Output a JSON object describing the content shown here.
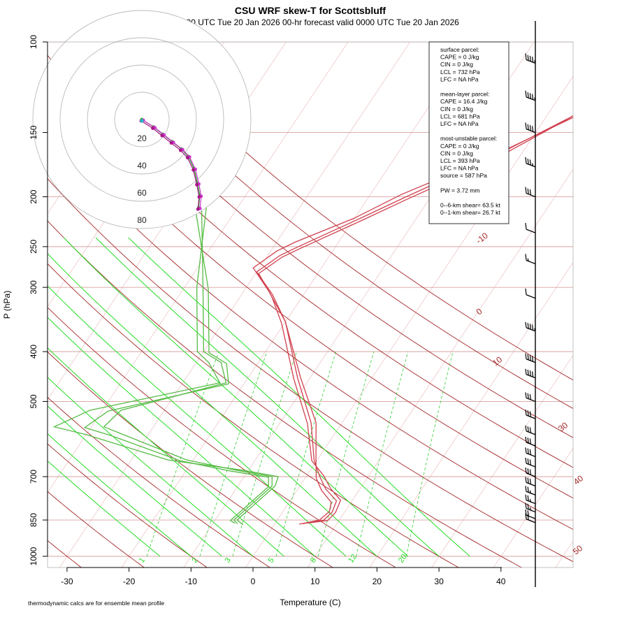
{
  "header": {
    "title": "CSU WRF skew-T for Scottsbluff",
    "subtitle": "init: 0000 UTC Tue 20 Jan 2026     00-hr forecast valid 0000 UTC Tue 20 Jan 2026"
  },
  "footer_note": "thermodynamic calcs are for ensemble mean profile",
  "colors": {
    "temperature": "#d0404e",
    "dewpoint": "#55bb44",
    "dry_adiabat": "#a32626",
    "moist_adiabat": "#22dd22",
    "mixing_ratio": "#33cc33",
    "isobar": "#d9a0a0",
    "isotherm": "#e8b6b6",
    "hodograph_ring": "#bbbbbb",
    "hodo_magenta": "#cc33cc",
    "hodo_cyan": "#22bbcc",
    "wind_barb": "#000000"
  },
  "stats": {
    "lines": [
      "surface parcel:",
      "CAPE = 0 J/kg",
      "CIN = 0 J/kg",
      "LCL = 732 hPa",
      "LFC = NA hPa",
      "",
      "mean-layer parcel:",
      "CAPE = 16.4 J/kg",
      "CIN = 0 J/kg",
      "LCL = 681 hPa",
      "LFC = NA hPa",
      "",
      "most-unstable parcel:",
      "CAPE = 0 J/kg",
      "CIN = 0 J/kg",
      "LCL = 393 hPa",
      "LFC = NA hPa",
      "source = 587 hPa",
      "",
      "PW =  3.72 mm",
      "",
      "0--6-km shear= 63.5 kt",
      "0--1-km shear= 26.7 kt"
    ]
  },
  "chart_data": {
    "type": "line",
    "title": "CSU WRF skew-T for Scottsbluff",
    "xlabel": "Temperature (C)",
    "ylabel": "P (hPa)",
    "x_ticks": [
      -30,
      -20,
      -10,
      0,
      10,
      20,
      30,
      40
    ],
    "y_ticks": [
      100,
      150,
      200,
      250,
      300,
      400,
      500,
      700,
      850,
      1000
    ],
    "ylim": [
      1000,
      100
    ],
    "y_scale": "log",
    "dry_adiabat_labels": [
      "-10",
      "0",
      "10",
      "30",
      "40",
      "50"
    ],
    "mixing_ratio_labels": [
      "1",
      "2",
      "3",
      "5",
      "8",
      "12",
      "20"
    ],
    "hodograph_ring_labels": [
      "20",
      "40",
      "60",
      "80"
    ],
    "temperature_members": [
      {
        "p": [
          864,
          850,
          820,
          780,
          740,
          700,
          650,
          550,
          450,
          350,
          310,
          280,
          260,
          250,
          220,
          200,
          170,
          140,
          125,
          110
        ],
        "t": [
          4.5,
          7.5,
          8.0,
          7.5,
          4.5,
          2.2,
          -0.5,
          -5,
          -12,
          -20,
          -25,
          -30,
          -28,
          -26,
          -19,
          -14,
          -5,
          4,
          8,
          12
        ]
      },
      {
        "p": [
          866,
          850,
          818,
          785,
          745,
          705,
          650,
          550,
          450,
          350,
          305,
          275,
          255,
          245,
          220,
          198,
          170,
          140,
          125,
          110
        ],
        "t": [
          4.0,
          6.8,
          7.5,
          6.8,
          4.0,
          1.8,
          -0.2,
          -4.2,
          -11.5,
          -20,
          -26,
          -31,
          -29,
          -27,
          -20,
          -15,
          -5.5,
          4.5,
          9,
          13
        ]
      },
      {
        "p": [
          862,
          852,
          822,
          778,
          738,
          698,
          652,
          552,
          452,
          352,
          312,
          282,
          262,
          252,
          222,
          202,
          172,
          142,
          127,
          112
        ],
        "t": [
          5.2,
          8.2,
          8.6,
          8.1,
          5.2,
          2.8,
          -0.8,
          -5.5,
          -12.5,
          -20.5,
          -25,
          -29.5,
          -27.5,
          -25.5,
          -18.5,
          -13.5,
          -4.5,
          3.5,
          7.5,
          11.5
        ]
      }
    ],
    "dewpoint_members": [
      {
        "p": [
          865,
          850,
          800,
          730,
          700,
          680,
          650,
          580,
          560,
          520,
          460,
          420,
          400,
          300,
          200,
          170
        ],
        "td": [
          -6,
          -7,
          -6,
          -4.5,
          -5.5,
          -12,
          -21,
          -34,
          -38,
          -37,
          -23,
          -26,
          -30,
          -37,
          -47,
          -53
        ]
      },
      {
        "p": [
          868,
          850,
          800,
          730,
          700,
          680,
          650,
          580,
          560,
          520,
          460,
          420,
          400,
          300,
          200,
          170
        ],
        "td": [
          -5,
          -6.5,
          -5.5,
          -4,
          -4.5,
          -11,
          -24,
          -40,
          -46,
          -42,
          -24,
          -28,
          -31,
          -38,
          -46,
          -52
        ]
      },
      {
        "p": [
          862,
          852,
          802,
          732,
          702,
          682,
          652,
          582,
          562,
          522,
          462,
          422,
          402,
          302,
          202,
          172
        ],
        "td": [
          -6.5,
          -7.5,
          -6.5,
          -5,
          -6,
          -13,
          -22,
          -36,
          -41,
          -39,
          -22.5,
          -25,
          -29,
          -36,
          -48,
          -54
        ]
      }
    ],
    "wind_barbs": [
      {
        "p": 110,
        "spd": 85
      },
      {
        "p": 130,
        "spd": 85
      },
      {
        "p": 150,
        "spd": 80
      },
      {
        "p": 175,
        "spd": 75
      },
      {
        "p": 200,
        "spd": 70
      },
      {
        "p": 235,
        "spd": 50
      },
      {
        "p": 270,
        "spd": 55
      },
      {
        "p": 315,
        "spd": 50
      },
      {
        "p": 365,
        "spd": 45
      },
      {
        "p": 420,
        "spd": 40
      },
      {
        "p": 450,
        "spd": 40
      },
      {
        "p": 500,
        "spd": 30
      },
      {
        "p": 540,
        "spd": 30
      },
      {
        "p": 580,
        "spd": 30
      },
      {
        "p": 610,
        "spd": 30
      },
      {
        "p": 640,
        "spd": 30
      },
      {
        "p": 670,
        "spd": 30
      },
      {
        "p": 700,
        "spd": 30
      },
      {
        "p": 730,
        "spd": 30
      },
      {
        "p": 760,
        "spd": 25
      },
      {
        "p": 790,
        "spd": 25
      },
      {
        "p": 820,
        "spd": 25
      },
      {
        "p": 845,
        "spd": 20
      },
      {
        "p": 860,
        "spd": 20
      }
    ]
  }
}
